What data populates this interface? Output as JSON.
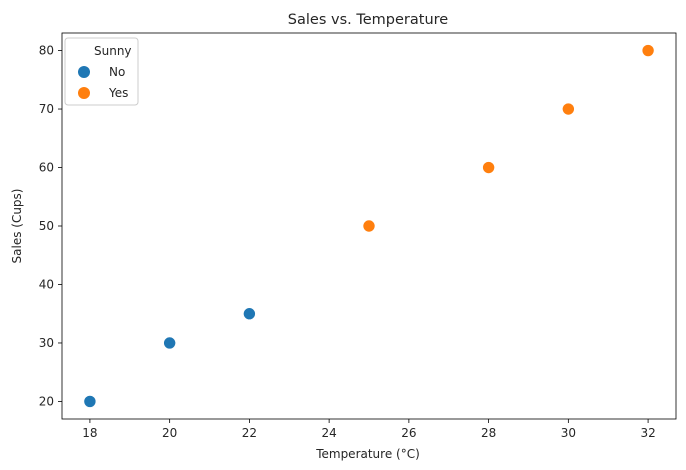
{
  "chart_data": {
    "type": "scatter",
    "title": "Sales vs. Temperature",
    "xlabel": "Temperature (°C)",
    "ylabel": "Sales (Cups)",
    "xlim": [
      17.3,
      32.7
    ],
    "ylim": [
      17,
      83
    ],
    "xticks": [
      18,
      20,
      22,
      24,
      26,
      28,
      30,
      32
    ],
    "yticks": [
      20,
      30,
      40,
      50,
      60,
      70,
      80
    ],
    "grid": false,
    "legend": {
      "title": "Sunny",
      "placement": "top-left"
    },
    "series": [
      {
        "name": "No",
        "color": "#1f77b4",
        "points": [
          {
            "x": 18,
            "y": 20
          },
          {
            "x": 20,
            "y": 30
          },
          {
            "x": 22,
            "y": 35
          }
        ]
      },
      {
        "name": "Yes",
        "color": "#ff7f0e",
        "points": [
          {
            "x": 25,
            "y": 50
          },
          {
            "x": 28,
            "y": 60
          },
          {
            "x": 30,
            "y": 70
          },
          {
            "x": 32,
            "y": 80
          }
        ]
      }
    ]
  }
}
